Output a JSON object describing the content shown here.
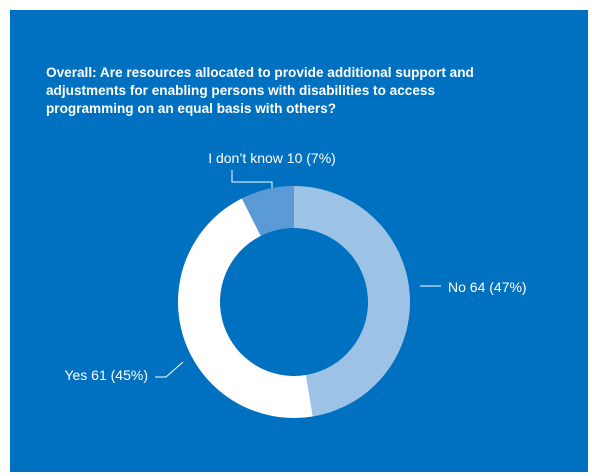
{
  "title_lines": [
    "Overall: Are resources allocated to provide additional support and",
    "adjustments for enabling persons with disabilities to access",
    "programming on an equal basis with others?"
  ],
  "colors": {
    "background": "#0070c0",
    "no": "#9cc3e6",
    "yes": "#ffffff",
    "dont_know": "#5b9bd5"
  },
  "chart_data": {
    "type": "pie",
    "donut": true,
    "title": "Overall: Are resources allocated to provide additional support and adjustments for enabling persons with disabilities to access programming on an equal basis with others?",
    "categories": [
      "No",
      "Yes",
      "I don’t know"
    ],
    "values": [
      64,
      61,
      10
    ],
    "percentages": [
      47,
      45,
      7
    ],
    "labels": [
      "No 64 (47%)",
      "Yes 61 (45%)",
      "I don’t know 10 (7%)"
    ]
  }
}
